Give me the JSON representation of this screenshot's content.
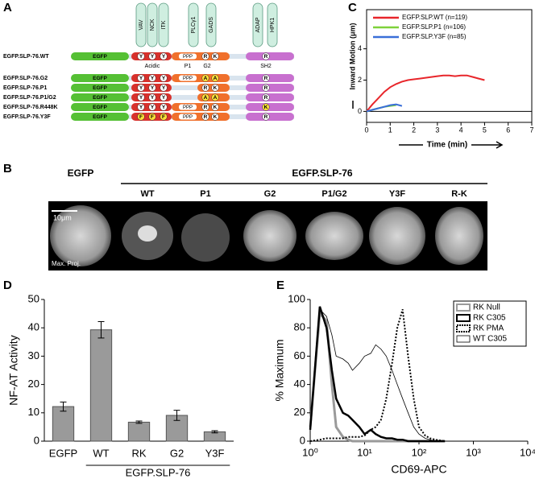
{
  "panel_labels": [
    "A",
    "B",
    "C",
    "D",
    "E"
  ],
  "panel_a": {
    "binding_partners": [
      "VAV",
      "NCK",
      "ITK",
      "PLCγ1",
      "GADS",
      "ADAP",
      "HPK1"
    ],
    "domain_labels": [
      "Acidic",
      "P1",
      "G2",
      "SH2"
    ],
    "constructs": [
      {
        "name": "EGFP.SLP-76.WT",
        "egfp": "EGFP",
        "acidic": {
          "residues": [
            "Y",
            "Y",
            "Y"
          ],
          "color": "#ffffff"
        },
        "proline": "PPP",
        "g2": {
          "residues": [
            "R",
            "K"
          ],
          "color": "#ffffff"
        },
        "sh2": {
          "residue": "R",
          "color": "#ffffff"
        }
      },
      {
        "name": "EGFP.SLP-76.G2",
        "egfp": "EGFP",
        "acidic": {
          "residues": [
            "Y",
            "Y",
            "Y"
          ],
          "color": "#ffffff"
        },
        "proline": "PPP",
        "g2": {
          "residues": [
            "A",
            "A"
          ],
          "color": "#ffe23a"
        },
        "sh2": {
          "residue": "R",
          "color": "#ffffff"
        }
      },
      {
        "name": "EGFP.SLP-76.P1",
        "egfp": "EGFP",
        "acidic": {
          "residues": [
            "Y",
            "Y",
            "Y"
          ],
          "color": "#ffffff"
        },
        "g2": {
          "residues": [
            "R",
            "K"
          ],
          "color": "#ffffff"
        },
        "sh2": {
          "residue": "R",
          "color": "#ffffff"
        }
      },
      {
        "name": "EGFP.SLP-76.P1/G2",
        "egfp": "EGFP",
        "acidic": {
          "residues": [
            "Y",
            "Y",
            "Y"
          ],
          "color": "#ffffff"
        },
        "g2": {
          "residues": [
            "A",
            "A"
          ],
          "color": "#ffe23a"
        },
        "sh2": {
          "residue": "R",
          "color": "#ffffff"
        }
      },
      {
        "name": "EGFP.SLP-76.R448K",
        "egfp": "EGFP",
        "acidic": {
          "residues": [
            "Y",
            "Y",
            "Y"
          ],
          "color": "#ffffff"
        },
        "proline": "PPP",
        "g2": {
          "residues": [
            "R",
            "K"
          ],
          "color": "#ffffff"
        },
        "sh2": {
          "residue": "K",
          "color": "#ffe23a"
        }
      },
      {
        "name": "EGFP.SLP-76.Y3F",
        "egfp": "EGFP",
        "acidic": {
          "residues": [
            "F",
            "F",
            "F"
          ],
          "color": "#ffe23a"
        },
        "proline": "PPP",
        "g2": {
          "residues": [
            "R",
            "K"
          ],
          "color": "#ffffff"
        },
        "sh2": {
          "residue": "R",
          "color": "#ffffff"
        }
      }
    ]
  },
  "panel_b": {
    "label_egfp": "EGFP",
    "label_group": "EGFP.SLP-76",
    "columns": [
      "WT",
      "P1",
      "G2",
      "P1/G2",
      "Y3F",
      "R-K"
    ],
    "scale_bar": "10μm",
    "projection": "Max. Proj."
  },
  "chart_data": [
    {
      "type": "line",
      "xlabel": "Time (min)",
      "ylabel": "Inward Motion (μm)",
      "legend": "upper left",
      "x": [
        0,
        0.25,
        0.5,
        0.75,
        1,
        1.25,
        1.5,
        1.75,
        2,
        2.25,
        2.5,
        2.75,
        3,
        3.25,
        3.5,
        3.75,
        4,
        4.25,
        4.5,
        4.75,
        5
      ],
      "xlim": [
        0,
        7
      ],
      "xticks": [
        0,
        1,
        2,
        3,
        4,
        5,
        6,
        7
      ],
      "ylim": [
        -0.7,
        6.5
      ],
      "yticks": [
        0,
        2,
        4
      ],
      "series": [
        {
          "name": "EGFP.SLP.WT (n=119)",
          "color": "#e8262b",
          "values": [
            0,
            0.45,
            0.85,
            1.25,
            1.55,
            1.75,
            1.9,
            2.0,
            2.05,
            2.1,
            2.15,
            2.2,
            2.25,
            2.3,
            2.3,
            2.25,
            2.3,
            2.3,
            2.2,
            2.1,
            2.0
          ]
        },
        {
          "name": "EGFP.SLP.P1 (n=106)",
          "color": "#7ed13b",
          "values": [
            0,
            0.1,
            0.2,
            0.3,
            0.35,
            0.4,
            null,
            null,
            null,
            null,
            null,
            null,
            null,
            null,
            null,
            null,
            null,
            null,
            null,
            null,
            null
          ]
        },
        {
          "name": "EGFP.SLP.Y3F (n=85)",
          "color": "#3a6fd8",
          "values": [
            0,
            0.1,
            0.2,
            0.3,
            0.4,
            0.45,
            0.35,
            null,
            null,
            null,
            null,
            null,
            null,
            null,
            null,
            null,
            null,
            null,
            null,
            null,
            null
          ]
        }
      ]
    },
    {
      "type": "bar",
      "ylabel": "NF-AT Activity",
      "group_label": "EGFP.SLP-76",
      "color": "#9a9a9a",
      "categories": [
        "EGFP",
        "WT",
        "RK",
        "G2",
        "Y3F"
      ],
      "values": [
        12.2,
        39.3,
        6.7,
        9.1,
        3.3
      ],
      "errors": [
        1.6,
        2.9,
        0.4,
        1.8,
        0.4
      ],
      "ylim": [
        0,
        50
      ],
      "yticks": [
        0,
        10,
        20,
        30,
        40,
        50
      ]
    },
    {
      "type": "line",
      "log_x": true,
      "xlabel": "CD69-APC",
      "ylabel": "% Maximum",
      "legend": "upper right",
      "x": [
        1,
        1.5,
        2,
        2.5,
        3,
        4,
        5,
        6,
        8,
        10,
        13,
        16,
        20,
        25,
        32,
        40,
        50,
        63,
        80,
        100,
        130,
        160,
        200,
        300
      ],
      "xlim": [
        1,
        10000
      ],
      "xticks": [
        {
          "value": 1,
          "label": "10⁰"
        },
        {
          "value": 10,
          "label": "10¹"
        },
        {
          "value": 100,
          "label": "10²"
        },
        {
          "value": 1000,
          "label": "10³"
        },
        {
          "value": 10000,
          "label": "10⁴"
        }
      ],
      "ylim": [
        0,
        100
      ],
      "yticks": [
        0,
        20,
        40,
        60,
        80,
        100
      ],
      "series": [
        {
          "name": "RK Null",
          "color": "#9a9a9a",
          "width": 3,
          "dash": "solid",
          "values": [
            10,
            90,
            85,
            40,
            10,
            3,
            1,
            0,
            0,
            0,
            0,
            0,
            0,
            0,
            0,
            0,
            0,
            0,
            0,
            0,
            0,
            0,
            0,
            0
          ]
        },
        {
          "name": "RK C305",
          "color": "#000000",
          "width": 2.5,
          "dash": "solid",
          "values": [
            8,
            95,
            80,
            50,
            30,
            20,
            18,
            15,
            10,
            5,
            8,
            5,
            3,
            2,
            2,
            1,
            1,
            0,
            0,
            0,
            0,
            0,
            0,
            0
          ]
        },
        {
          "name": "RK PMA",
          "color": "#000000",
          "width": 2,
          "dash": "dotted",
          "values": [
            0,
            1,
            2,
            2,
            2,
            2,
            3,
            3,
            3,
            4,
            8,
            10,
            15,
            30,
            55,
            80,
            93,
            60,
            30,
            10,
            4,
            2,
            1,
            0
          ]
        },
        {
          "name": "WT C305",
          "color": "#000000",
          "width": 0.8,
          "dash": "solid",
          "values": [
            10,
            93,
            88,
            75,
            60,
            58,
            55,
            50,
            55,
            60,
            62,
            68,
            65,
            60,
            50,
            40,
            30,
            20,
            10,
            5,
            2,
            1,
            0,
            0
          ]
        }
      ]
    }
  ]
}
